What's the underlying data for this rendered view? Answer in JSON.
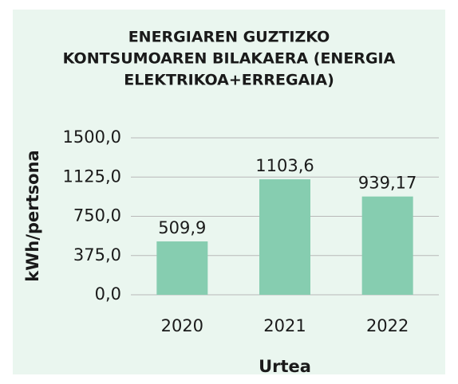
{
  "chart_data": {
    "type": "bar",
    "title": [
      "ENERGIAREN GUZTIZKO",
      "KONTSUMOAREN BILAKAERA (ENERGIA",
      "ELEKTRIKOA+ERREGAIA)"
    ],
    "x_label": "Urtea",
    "y_label": "kWh/pertsona",
    "categories": [
      "2020",
      "2021",
      "2022"
    ],
    "values": [
      509.9,
      1103.6,
      939.17
    ],
    "value_labels": [
      "509,9",
      "1103,6",
      "939,17"
    ],
    "color": "#86cdb0",
    "ylim": [
      0,
      1500
    ],
    "yticks": [
      {
        "value": 0,
        "label": "0,0"
      },
      {
        "value": 375,
        "label": "375,0"
      },
      {
        "value": 750,
        "label": "750,0"
      },
      {
        "value": 1125,
        "label": "1125,0"
      },
      {
        "value": 1500,
        "label": "1500,0"
      }
    ],
    "grid": true
  }
}
